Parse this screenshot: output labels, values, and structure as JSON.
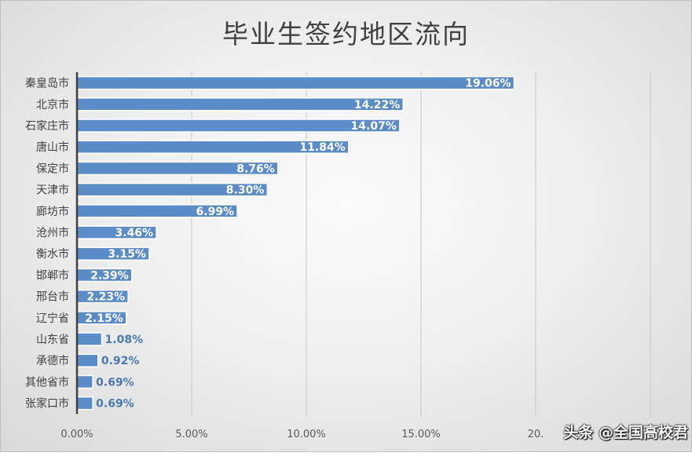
{
  "chart_data": {
    "type": "bar",
    "orientation": "horizontal",
    "title": "毕业生签约地区流向",
    "categories": [
      "秦皇岛市",
      "北京市",
      "石家庄市",
      "唐山市",
      "保定市",
      "天津市",
      "廊坊市",
      "沧州市",
      "衡水市",
      "邯郸市",
      "邢台市",
      "辽宁省",
      "山东省",
      "承德市",
      "其他省市",
      "张家口市"
    ],
    "values": [
      19.06,
      14.22,
      14.07,
      11.84,
      8.76,
      8.3,
      6.99,
      3.46,
      3.15,
      2.39,
      2.23,
      2.15,
      1.08,
      0.92,
      0.69,
      0.69
    ],
    "data_labels": [
      "19.06%",
      "14.22%",
      "14.07%",
      "11.84%",
      "8.76%",
      "8.30%",
      "6.99%",
      "3.46%",
      "3.15%",
      "2.39%",
      "2.23%",
      "2.15%",
      "1.08%",
      "0.92%",
      "0.69%",
      "0.69%"
    ],
    "xlim": [
      0,
      25
    ],
    "x_ticks": [
      0,
      5,
      10,
      15,
      20
    ],
    "x_tick_labels": [
      "0.00%",
      "5.00%",
      "10.00%",
      "15.00%",
      "20."
    ],
    "grid": true,
    "bar_color": "#5b8cc8",
    "legend": "none"
  },
  "watermark": "头条 @全国高校君"
}
